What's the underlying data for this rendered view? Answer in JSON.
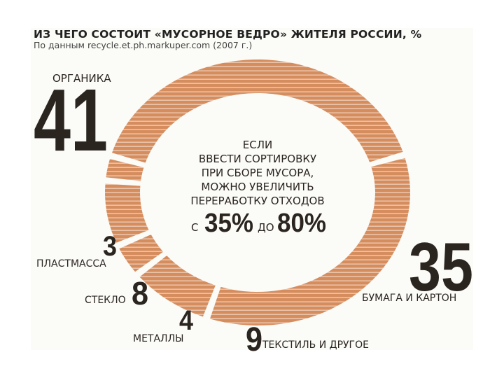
{
  "header": {
    "title": "ИЗ ЧЕГО СОСТОИТ «МУСОРНОЕ ВЕДРО» ЖИТЕЛЯ РОССИИ, %",
    "subtitle": "По данным recycle.et.ph.markuper.com (2007 г.)"
  },
  "center_text": {
    "lines": [
      "ЕСЛИ",
      "ВВЕСТИ СОРТИРОВКУ",
      "ПРИ СБОРЕ МУСОРА,",
      "МОЖНО УВЕЛИЧИТЬ",
      "ПЕРЕРАБОТКУ ОТХОДОВ"
    ],
    "from_word": "С",
    "from_value": "35%",
    "to_word": "ДО",
    "to_value": "80%"
  },
  "colors": {
    "ring": "#d68d5e",
    "stripe": "#f4dccb",
    "ink": "#2b2520"
  },
  "chart_data": {
    "type": "pie",
    "variant": "donut",
    "title": "ИЗ ЧЕГО СОСТОИТ «МУСОРНОЕ ВЕДРО» ЖИТЕЛЯ РОССИИ, %",
    "subtitle": "По данным recycle.et.ph.markuper.com (2007 г.)",
    "categories": [
      "ОРГАНИКА",
      "БУМАГА И КАРТОН",
      "ТЕКСТИЛЬ И ДРУГОЕ",
      "МЕТАЛЛЫ",
      "СТЕКЛО",
      "ПЛАСТМАССА"
    ],
    "values": [
      41,
      35,
      9,
      4,
      8,
      3
    ],
    "value_labels": [
      "41",
      "35",
      "9",
      "4",
      "8",
      "3"
    ]
  }
}
